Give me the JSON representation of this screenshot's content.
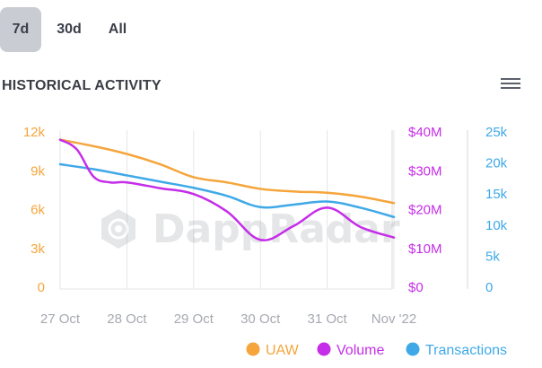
{
  "tabs": [
    {
      "label": "7d",
      "active": true
    },
    {
      "label": "30d",
      "active": false
    },
    {
      "label": "All",
      "active": false
    }
  ],
  "section": {
    "title": "HISTORICAL ACTIVITY"
  },
  "menu": {
    "icon": "hamburger-menu-icon"
  },
  "watermark": {
    "text": "DappRadar"
  },
  "colors": {
    "uaw": "#f5a53b",
    "volume": "#c52de8",
    "transactions": "#3fa9e8",
    "grid": "#e6e6e6"
  },
  "chart_data": {
    "type": "line",
    "categories": [
      "27 Oct",
      "28 Oct",
      "29 Oct",
      "30 Oct",
      "31 Oct",
      "Nov '22"
    ],
    "axes": {
      "left": {
        "series": "UAW",
        "min": 0,
        "max": 12000,
        "ticks": [
          "0",
          "3k",
          "6k",
          "9k",
          "12k"
        ]
      },
      "right1": {
        "series": "Volume",
        "min": 0,
        "max": 40000000,
        "ticks": [
          "$0",
          "$10M",
          "$20M",
          "$30M",
          "$40M"
        ]
      },
      "right2": {
        "series": "Transactions",
        "min": 0,
        "max": 25000,
        "ticks": [
          "0",
          "5k",
          "10k",
          "15k",
          "20k",
          "25k"
        ]
      }
    },
    "series": [
      {
        "name": "UAW",
        "axis": "left",
        "color": "#f5a53b",
        "x": [
          0,
          0.5,
          1,
          1.5,
          2,
          2.5,
          3,
          3.5,
          4,
          4.5,
          5
        ],
        "values": [
          11400,
          10900,
          10300,
          9500,
          8500,
          8100,
          7600,
          7400,
          7300,
          7000,
          6500
        ]
      },
      {
        "name": "Volume",
        "axis": "right1",
        "color": "#c52de8",
        "x": [
          0,
          0.25,
          0.5,
          0.75,
          1,
          1.5,
          2,
          2.5,
          3,
          3.5,
          4,
          4.5,
          5
        ],
        "values": [
          38000000,
          35500000,
          28500000,
          27000000,
          27000000,
          25500000,
          24000000,
          19500000,
          12200000,
          15800000,
          20500000,
          15500000,
          12800000
        ]
      },
      {
        "name": "Transactions",
        "axis": "right2",
        "color": "#3fa9e8",
        "x": [
          0,
          0.5,
          1,
          1.5,
          2,
          2.5,
          3,
          3.5,
          4,
          4.5,
          5
        ],
        "values": [
          19800,
          19000,
          18000,
          17000,
          16000,
          14700,
          12900,
          13300,
          13800,
          12800,
          11300
        ]
      }
    ],
    "legend": {
      "position": "bottom-right",
      "items": [
        "UAW",
        "Volume",
        "Transactions"
      ]
    },
    "grid": true
  }
}
